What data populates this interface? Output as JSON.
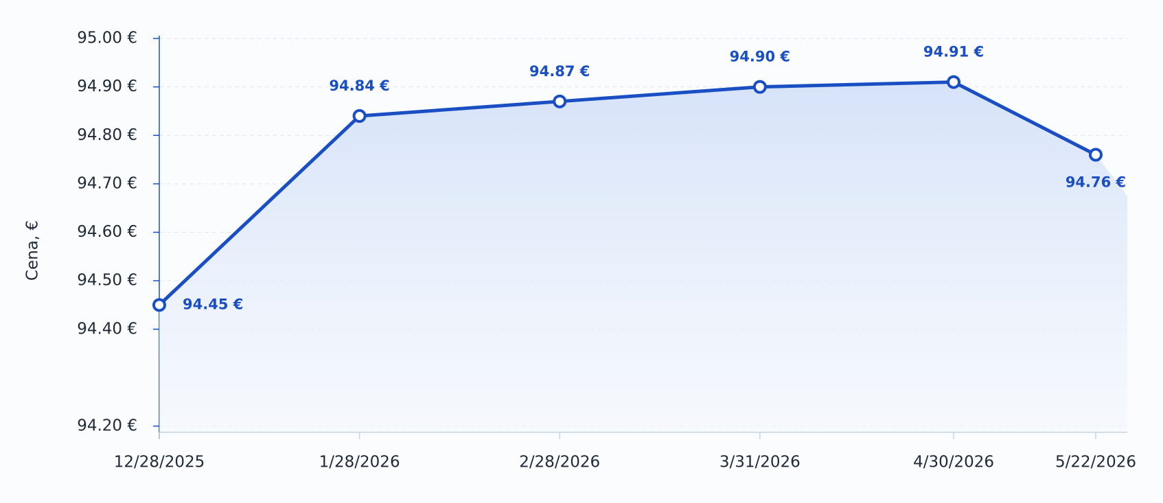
{
  "chart_data": {
    "type": "line",
    "y_label": "Cena, €",
    "x": [
      "12/28/2025",
      "1/28/2026",
      "2/28/2026",
      "3/31/2026",
      "4/30/2026",
      "5/22/2026"
    ],
    "series": [
      {
        "name": "Cena",
        "color": "#1a4fc4",
        "values": [
          94.45,
          94.84,
          94.87,
          94.9,
          94.91,
          94.76
        ],
        "value_labels": [
          "94.45 €",
          "94.84 €",
          "94.87 €",
          "94.90 €",
          "94.91 €",
          "94.76 €"
        ]
      }
    ],
    "ylim": [
      94.2,
      95.0
    ],
    "yticks": [
      {
        "value": 94.2,
        "label": "94.20 €"
      },
      {
        "value": 94.4,
        "label": "94.40 €"
      },
      {
        "value": 94.5,
        "label": "94.50 €"
      },
      {
        "value": 94.6,
        "label": "94.60 €"
      },
      {
        "value": 94.7,
        "label": "94.70 €"
      },
      {
        "value": 94.8,
        "label": "94.80 €"
      },
      {
        "value": 94.9,
        "label": "94.90 €"
      },
      {
        "value": 95.0,
        "label": "95.00 €"
      }
    ],
    "grid": true
  }
}
